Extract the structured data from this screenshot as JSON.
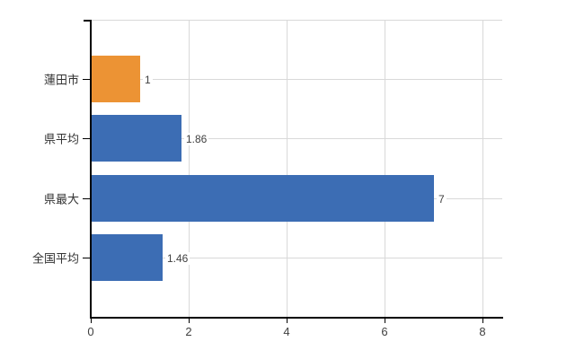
{
  "chart_data": {
    "type": "bar",
    "orientation": "horizontal",
    "title": "",
    "xlabel": "",
    "ylabel": "",
    "categories": [
      "蓮田市",
      "県平均",
      "県最大",
      "全国平均"
    ],
    "values": [
      1,
      1.86,
      7,
      1.46
    ],
    "value_labels": [
      "1",
      "1.86",
      "7",
      "1.46"
    ],
    "bar_colors": [
      "#ec9334",
      "#3c6db4",
      "#3c6db4",
      "#3c6db4"
    ],
    "xlim": [
      0,
      8.4
    ],
    "xticks": [
      0,
      2,
      4,
      6,
      8
    ],
    "xtick_labels": [
      "0",
      "2",
      "4",
      "6",
      "8"
    ],
    "grid": true,
    "legend": false,
    "colors": {
      "background": "#ffffff",
      "gridline": "#d9d9d9",
      "axis": "#000000",
      "tick_label": "#404040",
      "category_label": "#333333",
      "value_label": "#404040"
    }
  }
}
